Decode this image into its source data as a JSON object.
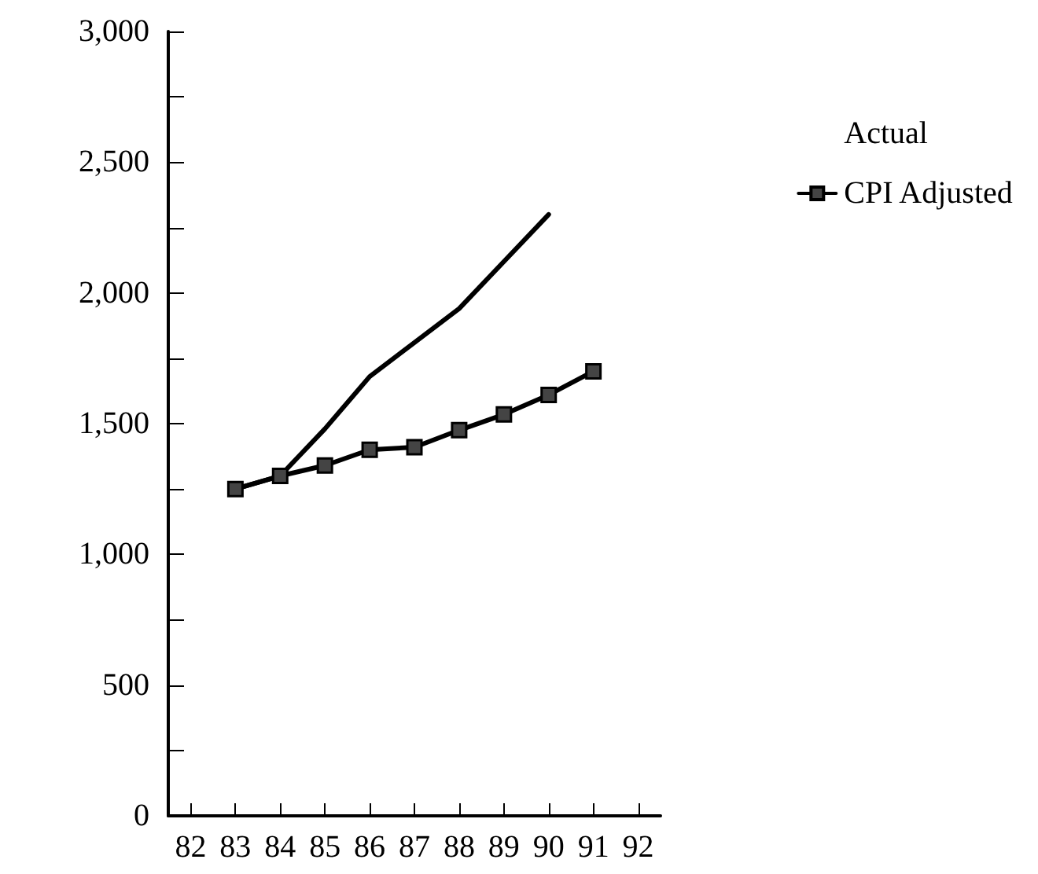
{
  "chart_data": {
    "type": "line",
    "categories": [
      "82",
      "83",
      "84",
      "85",
      "86",
      "87",
      "88",
      "89",
      "90",
      "91",
      "92"
    ],
    "series": [
      {
        "name": "Actual",
        "color": "#000000",
        "marker": "none",
        "values": [
          null,
          1250,
          1300,
          1480,
          1680,
          1810,
          1940,
          2120,
          2300,
          null,
          null
        ]
      },
      {
        "name": "CPI Adjusted",
        "color": "#000000",
        "marker": "square",
        "values": [
          null,
          1250,
          1300,
          1340,
          1400,
          1410,
          1475,
          1535,
          1610,
          1700,
          null
        ]
      }
    ],
    "ylim": [
      0,
      3000
    ],
    "yticks": [
      0,
      {
        "value": 250,
        "label": null
      },
      500,
      {
        "value": 750,
        "label": null
      },
      {
        "value": 1000,
        "label": "1,000"
      },
      {
        "value": 1250,
        "label": null
      },
      {
        "value": 1500,
        "label": "1,500"
      },
      {
        "value": 1750,
        "label": null
      },
      {
        "value": 2000,
        "label": "2,000"
      },
      {
        "value": 2250,
        "label": null
      },
      {
        "value": 2500,
        "label": "2,500"
      },
      {
        "value": 2750,
        "label": null
      },
      {
        "value": 3000,
        "label": "3,000"
      }
    ],
    "grid": false,
    "legend": "top right",
    "line_style": "solid"
  }
}
